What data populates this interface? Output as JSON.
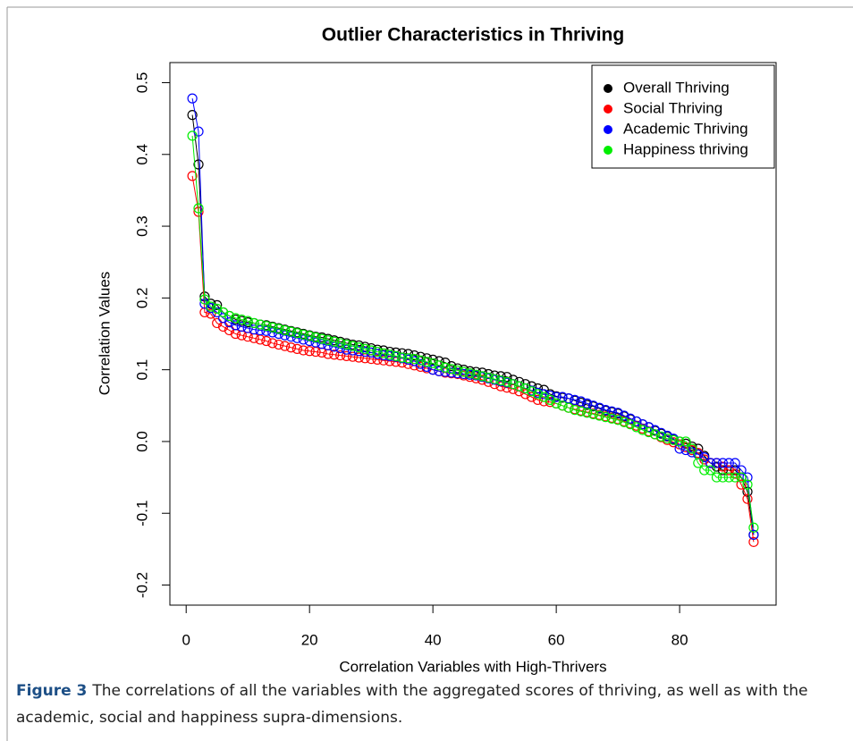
{
  "chart_data": {
    "type": "line",
    "title": "Outlier Characteristics in Thriving",
    "xlabel": "Correlation Variables with High-Thrivers",
    "ylabel": "Correlation Values",
    "x": [
      1,
      2,
      3,
      4,
      5,
      6,
      7,
      8,
      9,
      10,
      11,
      12,
      13,
      14,
      15,
      16,
      17,
      18,
      19,
      20,
      21,
      22,
      23,
      24,
      25,
      26,
      27,
      28,
      29,
      30,
      31,
      32,
      33,
      34,
      35,
      36,
      37,
      38,
      39,
      40,
      41,
      42,
      43,
      44,
      45,
      46,
      47,
      48,
      49,
      50,
      51,
      52,
      53,
      54,
      55,
      56,
      57,
      58,
      59,
      60,
      61,
      62,
      63,
      64,
      65,
      66,
      67,
      68,
      69,
      70,
      71,
      72,
      73,
      74,
      75,
      76,
      77,
      78,
      79,
      80,
      81,
      82,
      83,
      84,
      85,
      86,
      87,
      88,
      89,
      90,
      91,
      92
    ],
    "series": [
      {
        "name": "Overall Thriving",
        "color": "#000000",
        "values": [
          0.455,
          0.386,
          0.202,
          0.192,
          0.19,
          0.18,
          0.175,
          0.17,
          0.168,
          0.166,
          0.165,
          0.163,
          0.162,
          0.16,
          0.158,
          0.156,
          0.154,
          0.152,
          0.15,
          0.148,
          0.146,
          0.145,
          0.143,
          0.141,
          0.139,
          0.137,
          0.135,
          0.134,
          0.132,
          0.13,
          0.128,
          0.127,
          0.125,
          0.124,
          0.123,
          0.122,
          0.12,
          0.118,
          0.116,
          0.114,
          0.112,
          0.11,
          0.105,
          0.102,
          0.1,
          0.098,
          0.097,
          0.096,
          0.094,
          0.092,
          0.091,
          0.09,
          0.086,
          0.083,
          0.08,
          0.077,
          0.074,
          0.072,
          0.066,
          0.063,
          0.061,
          0.06,
          0.057,
          0.054,
          0.051,
          0.049,
          0.046,
          0.043,
          0.041,
          0.039,
          0.035,
          0.031,
          0.028,
          0.024,
          0.02,
          0.015,
          0.011,
          0.007,
          0.003,
          0,
          -0.003,
          -0.007,
          -0.01,
          -0.02,
          -0.03,
          -0.035,
          -0.04,
          -0.04,
          -0.04,
          -0.05,
          -0.07,
          -0.13
        ]
      },
      {
        "name": "Social Thriving",
        "color": "#ff0000",
        "values": [
          0.37,
          0.32,
          0.18,
          0.178,
          0.165,
          0.16,
          0.155,
          0.15,
          0.148,
          0.146,
          0.144,
          0.142,
          0.14,
          0.137,
          0.135,
          0.133,
          0.131,
          0.129,
          0.127,
          0.126,
          0.125,
          0.124,
          0.122,
          0.121,
          0.12,
          0.119,
          0.118,
          0.117,
          0.116,
          0.115,
          0.114,
          0.113,
          0.112,
          0.111,
          0.11,
          0.108,
          0.106,
          0.104,
          0.102,
          0.1,
          0.098,
          0.096,
          0.095,
          0.094,
          0.092,
          0.09,
          0.088,
          0.086,
          0.083,
          0.08,
          0.077,
          0.075,
          0.073,
          0.07,
          0.066,
          0.062,
          0.058,
          0.056,
          0.055,
          0.053,
          0.05,
          0.047,
          0.045,
          0.043,
          0.041,
          0.039,
          0.037,
          0.035,
          0.033,
          0.031,
          0.028,
          0.025,
          0.022,
          0.018,
          0.014,
          0.01,
          0.006,
          0.002,
          -0.001,
          -0.004,
          -0.008,
          -0.012,
          -0.016,
          -0.025,
          -0.03,
          -0.03,
          -0.035,
          -0.04,
          -0.045,
          -0.06,
          -0.08,
          -0.14
        ]
      },
      {
        "name": "Academic Thriving",
        "color": "#0000ff",
        "values": [
          0.478,
          0.432,
          0.192,
          0.186,
          0.18,
          0.172,
          0.166,
          0.162,
          0.16,
          0.158,
          0.156,
          0.155,
          0.154,
          0.152,
          0.15,
          0.148,
          0.146,
          0.144,
          0.142,
          0.14,
          0.138,
          0.136,
          0.134,
          0.132,
          0.13,
          0.128,
          0.127,
          0.126,
          0.125,
          0.124,
          0.122,
          0.12,
          0.119,
          0.118,
          0.116,
          0.114,
          0.112,
          0.108,
          0.104,
          0.1,
          0.098,
          0.097,
          0.096,
          0.095,
          0.094,
          0.093,
          0.092,
          0.09,
          0.088,
          0.086,
          0.084,
          0.082,
          0.08,
          0.077,
          0.074,
          0.071,
          0.068,
          0.066,
          0.064,
          0.062,
          0.062,
          0.06,
          0.058,
          0.056,
          0.053,
          0.05,
          0.047,
          0.044,
          0.042,
          0.04,
          0.036,
          0.032,
          0.028,
          0.024,
          0.02,
          0.016,
          0.012,
          0.008,
          0.004,
          -0.01,
          -0.012,
          -0.015,
          -0.018,
          -0.022,
          -0.03,
          -0.03,
          -0.03,
          -0.03,
          -0.03,
          -0.04,
          -0.05,
          -0.13
        ]
      },
      {
        "name": "Happiness thriving",
        "color": "#00ee00",
        "values": [
          0.426,
          0.325,
          0.198,
          0.188,
          0.185,
          0.18,
          0.175,
          0.172,
          0.17,
          0.168,
          0.165,
          0.163,
          0.161,
          0.159,
          0.157,
          0.155,
          0.153,
          0.151,
          0.149,
          0.147,
          0.145,
          0.143,
          0.141,
          0.139,
          0.137,
          0.135,
          0.133,
          0.131,
          0.129,
          0.127,
          0.125,
          0.123,
          0.121,
          0.119,
          0.117,
          0.116,
          0.115,
          0.113,
          0.111,
          0.109,
          0.106,
          0.103,
          0.101,
          0.099,
          0.097,
          0.095,
          0.093,
          0.091,
          0.089,
          0.087,
          0.085,
          0.083,
          0.08,
          0.077,
          0.074,
          0.07,
          0.066,
          0.062,
          0.058,
          0.053,
          0.05,
          0.047,
          0.044,
          0.042,
          0.04,
          0.038,
          0.036,
          0.034,
          0.032,
          0.03,
          0.027,
          0.024,
          0.02,
          0.016,
          0.013,
          0.01,
          0.007,
          0.004,
          0.002,
          0,
          0,
          -0.01,
          -0.03,
          -0.04,
          -0.04,
          -0.05,
          -0.05,
          -0.05,
          -0.05,
          -0.05,
          -0.06,
          -0.12
        ]
      }
    ],
    "xlim": [
      -2.64,
      95.64
    ],
    "xticks": [
      0,
      20,
      40,
      60,
      80
    ],
    "ylim": [
      -0.228,
      0.528
    ],
    "yticks": [
      -0.2,
      -0.1,
      {
        "value": 0,
        "label": "0.0"
      },
      0.1,
      0.2,
      0.3,
      0.4,
      0.5
    ],
    "legend": "top-right"
  },
  "caption": {
    "label": "Figure 3",
    "text": "The correlations of all the variables with the aggregated scores of thriving, as well as with the academic, social and happiness supra-dimensions."
  }
}
